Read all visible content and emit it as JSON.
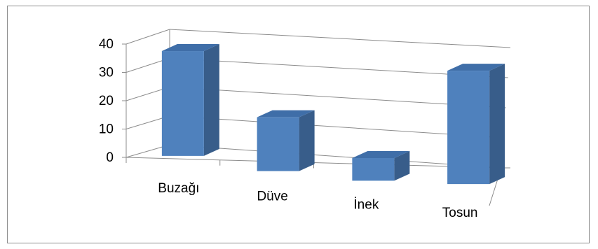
{
  "chart_data": {
    "type": "bar",
    "style": "3d-column",
    "categories": [
      "Buzağı",
      "Düve",
      "İnek",
      "Tosun"
    ],
    "values": [
      37,
      19,
      8,
      40
    ],
    "title": "",
    "xlabel": "",
    "ylabel": "",
    "ylim": [
      0,
      40
    ],
    "yticks": [
      0,
      10,
      20,
      30,
      40
    ],
    "grid": true,
    "legend": "none",
    "colors": {
      "bar_front": "#4f81bd",
      "bar_side": "#385d8a",
      "bar_top": "#3f6ea8",
      "grid": "#8c8c8c"
    }
  }
}
